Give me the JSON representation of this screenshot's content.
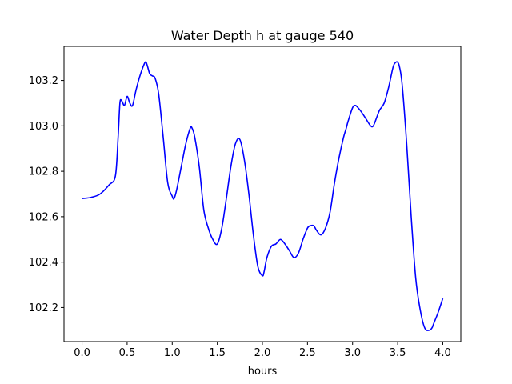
{
  "chart_data": {
    "type": "line",
    "title": "Water Depth h at gauge 540",
    "xlabel": "hours",
    "ylabel": "",
    "xlim": [
      -0.2,
      4.2
    ],
    "ylim": [
      102.05,
      103.35
    ],
    "grid": false,
    "x_ticks": [
      0.0,
      0.5,
      1.0,
      1.5,
      2.0,
      2.5,
      3.0,
      3.5,
      4.0
    ],
    "x_tick_labels": [
      "0.0",
      "0.5",
      "1.0",
      "1.5",
      "2.0",
      "2.5",
      "3.0",
      "3.5",
      "4.0"
    ],
    "y_ticks": [
      102.2,
      102.4,
      102.6,
      102.8,
      103.0,
      103.2
    ],
    "y_tick_labels": [
      "102.2",
      "102.4",
      "102.6",
      "102.8",
      "103.0",
      "103.2"
    ],
    "series": [
      {
        "color": "#0000ff",
        "x": [
          0.0,
          0.1,
          0.2,
          0.3,
          0.37,
          0.4,
          0.42,
          0.44,
          0.47,
          0.5,
          0.53,
          0.56,
          0.6,
          0.65,
          0.7,
          0.72,
          0.75,
          0.78,
          0.81,
          0.85,
          0.9,
          0.95,
          1.0,
          1.02,
          1.05,
          1.1,
          1.15,
          1.2,
          1.22,
          1.25,
          1.3,
          1.35,
          1.4,
          1.45,
          1.5,
          1.55,
          1.6,
          1.65,
          1.7,
          1.75,
          1.8,
          1.85,
          1.9,
          1.95,
          2.0,
          2.02,
          2.05,
          2.1,
          2.15,
          2.2,
          2.25,
          2.3,
          2.35,
          2.4,
          2.45,
          2.5,
          2.53,
          2.57,
          2.6,
          2.65,
          2.7,
          2.75,
          2.8,
          2.85,
          2.9,
          2.93,
          2.95,
          3.0,
          3.03,
          3.06,
          3.1,
          3.15,
          3.2,
          3.23,
          3.27,
          3.3,
          3.35,
          3.4,
          3.45,
          3.48,
          3.5,
          3.52,
          3.55,
          3.6,
          3.65,
          3.7,
          3.75,
          3.8,
          3.85,
          3.88,
          3.9,
          3.95,
          4.0
        ],
        "y": [
          102.68,
          102.685,
          102.7,
          102.74,
          102.78,
          102.95,
          103.1,
          103.11,
          103.09,
          103.13,
          103.1,
          103.09,
          103.16,
          103.23,
          103.28,
          103.27,
          103.23,
          103.22,
          103.21,
          103.14,
          102.95,
          102.75,
          102.69,
          102.68,
          102.72,
          102.82,
          102.92,
          102.99,
          102.99,
          102.95,
          102.82,
          102.63,
          102.55,
          102.5,
          102.48,
          102.55,
          102.68,
          102.82,
          102.92,
          102.94,
          102.85,
          102.7,
          102.52,
          102.38,
          102.34,
          102.36,
          102.42,
          102.47,
          102.48,
          102.5,
          102.48,
          102.45,
          102.42,
          102.44,
          102.5,
          102.55,
          102.56,
          102.56,
          102.54,
          102.52,
          102.55,
          102.62,
          102.75,
          102.86,
          102.95,
          102.99,
          103.02,
          103.08,
          103.09,
          103.08,
          103.06,
          103.03,
          103.0,
          103.0,
          103.04,
          103.07,
          103.1,
          103.17,
          103.26,
          103.28,
          103.28,
          103.26,
          103.18,
          102.92,
          102.6,
          102.33,
          102.19,
          102.11,
          102.1,
          102.11,
          102.13,
          102.18,
          102.24
        ]
      }
    ]
  }
}
